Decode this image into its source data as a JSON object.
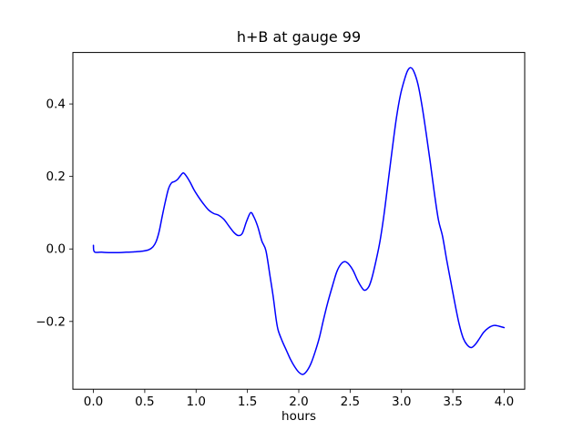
{
  "figure": {
    "background": "#ffffff",
    "axis_color": "#000000",
    "text_color": "#000000"
  },
  "chart_data": {
    "type": "line",
    "title": "h+B at gauge 99",
    "xlabel": "hours",
    "ylabel": "",
    "grid": false,
    "legend": null,
    "xlim": [
      -0.2,
      4.2
    ],
    "ylim": [
      -0.387,
      0.542
    ],
    "x_ticks": {
      "values": [
        0.0,
        0.5,
        1.0,
        1.5,
        2.0,
        2.5,
        3.0,
        3.5,
        4.0
      ],
      "labels": [
        "0.0",
        "0.5",
        "1.0",
        "1.5",
        "2.0",
        "2.5",
        "3.0",
        "3.5",
        "4.0"
      ]
    },
    "y_ticks": {
      "values": [
        -0.2,
        0.0,
        0.2,
        0.4
      ],
      "labels": [
        "−0.2",
        "0.0",
        "0.2",
        "0.4"
      ]
    },
    "series": [
      {
        "name": "h+B",
        "color": "#0000ff",
        "line_width": 1.5,
        "x": [
          0.0,
          0.01,
          0.08,
          0.16,
          0.24,
          0.32,
          0.4,
          0.48,
          0.54,
          0.58,
          0.61,
          0.64,
          0.67,
          0.7,
          0.73,
          0.76,
          0.79,
          0.82,
          0.85,
          0.875,
          0.9,
          0.94,
          0.98,
          1.02,
          1.07,
          1.12,
          1.17,
          1.22,
          1.27,
          1.32,
          1.37,
          1.41,
          1.45,
          1.49,
          1.53,
          1.56,
          1.6,
          1.64,
          1.68,
          1.72,
          1.75,
          1.78,
          1.8,
          1.84,
          1.88,
          1.92,
          1.96,
          2.0,
          2.04,
          2.08,
          2.12,
          2.16,
          2.2,
          2.24,
          2.28,
          2.33,
          2.37,
          2.41,
          2.45,
          2.49,
          2.53,
          2.57,
          2.61,
          2.64,
          2.68,
          2.71,
          2.75,
          2.79,
          2.83,
          2.87,
          2.91,
          2.95,
          2.99,
          3.03,
          3.06,
          3.09,
          3.12,
          3.16,
          3.2,
          3.24,
          3.28,
          3.32,
          3.36,
          3.4,
          3.44,
          3.48,
          3.52,
          3.56,
          3.6,
          3.64,
          3.68,
          3.72,
          3.76,
          3.8,
          3.85,
          3.9,
          3.95,
          4.0
        ],
        "y": [
          0.01,
          -0.008,
          -0.009,
          -0.01,
          -0.01,
          -0.009,
          -0.008,
          -0.006,
          -0.002,
          0.006,
          0.02,
          0.048,
          0.09,
          0.13,
          0.165,
          0.182,
          0.186,
          0.192,
          0.203,
          0.21,
          0.203,
          0.185,
          0.163,
          0.145,
          0.125,
          0.108,
          0.098,
          0.093,
          0.082,
          0.063,
          0.045,
          0.037,
          0.043,
          0.075,
          0.1,
          0.09,
          0.062,
          0.022,
          -0.005,
          -0.075,
          -0.13,
          -0.195,
          -0.225,
          -0.255,
          -0.28,
          -0.305,
          -0.325,
          -0.34,
          -0.346,
          -0.336,
          -0.315,
          -0.283,
          -0.245,
          -0.196,
          -0.15,
          -0.1,
          -0.063,
          -0.042,
          -0.035,
          -0.043,
          -0.06,
          -0.085,
          -0.105,
          -0.114,
          -0.105,
          -0.082,
          -0.035,
          0.02,
          0.095,
          0.185,
          0.275,
          0.36,
          0.425,
          0.468,
          0.492,
          0.5,
          0.49,
          0.455,
          0.395,
          0.32,
          0.24,
          0.155,
          0.08,
          0.035,
          -0.03,
          -0.09,
          -0.15,
          -0.205,
          -0.245,
          -0.265,
          -0.272,
          -0.263,
          -0.247,
          -0.23,
          -0.217,
          -0.211,
          -0.213,
          -0.217
        ]
      }
    ]
  }
}
